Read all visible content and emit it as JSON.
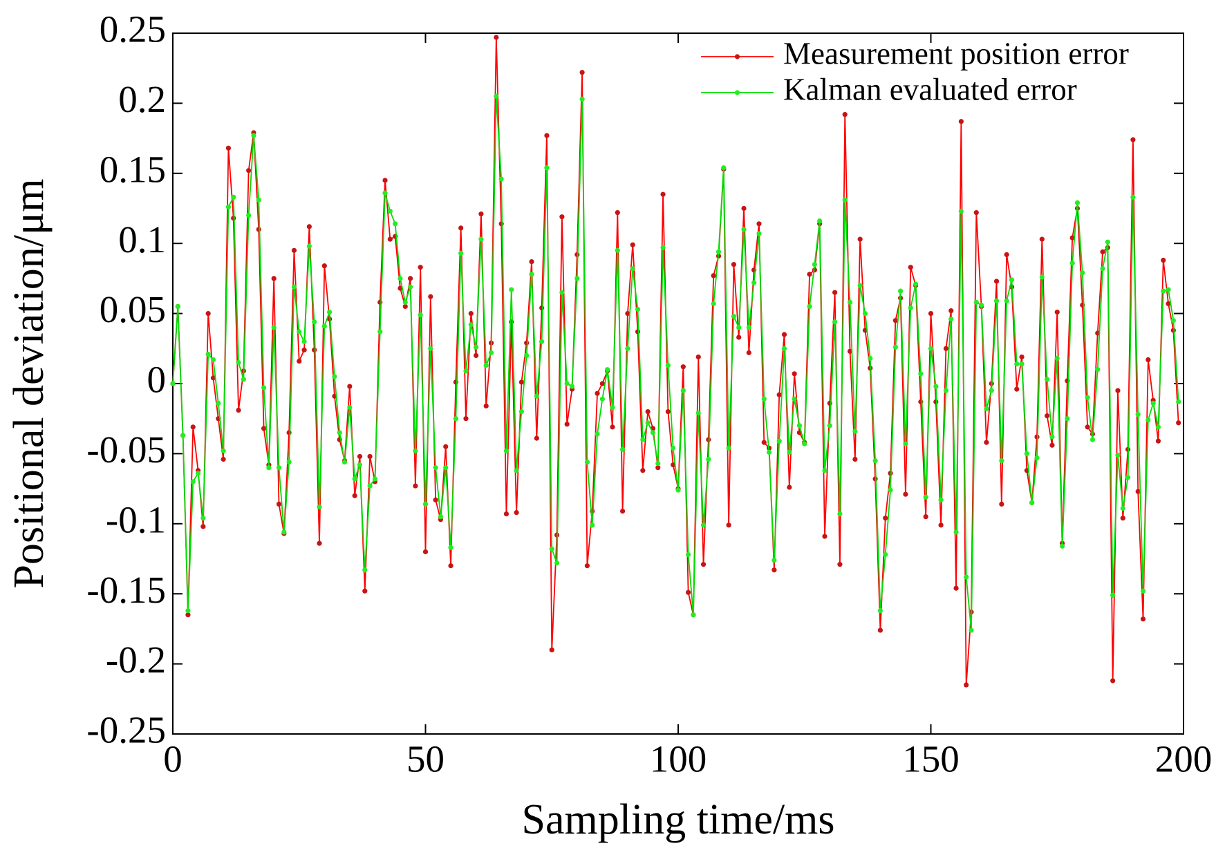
{
  "chart_data": {
    "type": "line",
    "xlabel": "Sampling time/ms",
    "ylabel": "Positional deviation/μm",
    "x": [
      0,
      1,
      2,
      3,
      4,
      5,
      6,
      7,
      8,
      9,
      10,
      11,
      12,
      13,
      14,
      15,
      16,
      17,
      18,
      19,
      20,
      21,
      22,
      23,
      24,
      25,
      26,
      27,
      28,
      29,
      30,
      31,
      32,
      33,
      34,
      35,
      36,
      37,
      38,
      39,
      40,
      41,
      42,
      43,
      44,
      45,
      46,
      47,
      48,
      49,
      50,
      51,
      52,
      53,
      54,
      55,
      56,
      57,
      58,
      59,
      60,
      61,
      62,
      63,
      64,
      65,
      66,
      67,
      68,
      69,
      70,
      71,
      72,
      73,
      74,
      75,
      76,
      77,
      78,
      79,
      80,
      81,
      82,
      83,
      84,
      85,
      86,
      87,
      88,
      89,
      90,
      91,
      92,
      93,
      94,
      95,
      96,
      97,
      98,
      99,
      100,
      101,
      102,
      103,
      104,
      105,
      106,
      107,
      108,
      109,
      110,
      111,
      112,
      113,
      114,
      115,
      116,
      117,
      118,
      119,
      120,
      121,
      122,
      123,
      124,
      125,
      126,
      127,
      128,
      129,
      130,
      131,
      132,
      133,
      134,
      135,
      136,
      137,
      138,
      139,
      140,
      141,
      142,
      143,
      144,
      145,
      146,
      147,
      148,
      149,
      150,
      151,
      152,
      153,
      154,
      155,
      156,
      157,
      158,
      159,
      160,
      161,
      162,
      163,
      164,
      165,
      166,
      167,
      168,
      169,
      170,
      171,
      172,
      173,
      174,
      175,
      176,
      177,
      178,
      179,
      180,
      181,
      182,
      183,
      184,
      185,
      186,
      187,
      188,
      189,
      190,
      191,
      192,
      193,
      194,
      195,
      196,
      197,
      198,
      199
    ],
    "series": [
      {
        "name": "Measurement position error",
        "color": "#ff0000",
        "marker_color": "#c81414",
        "values": [
          0,
          0.055,
          -0.037,
          -0.165,
          -0.031,
          -0.062,
          -0.102,
          0.05,
          0.004,
          -0.025,
          -0.054,
          0.168,
          0.118,
          -0.019,
          0.009,
          0.152,
          0.179,
          0.11,
          -0.032,
          -0.058,
          0.075,
          -0.086,
          -0.107,
          -0.035,
          0.095,
          0.016,
          0.024,
          0.112,
          0.024,
          -0.114,
          0.084,
          0.046,
          -0.009,
          -0.04,
          -0.055,
          -0.002,
          -0.08,
          -0.052,
          -0.148,
          -0.052,
          -0.07,
          0.058,
          0.145,
          0.103,
          0.105,
          0.068,
          0.055,
          0.075,
          -0.073,
          0.083,
          -0.12,
          0.062,
          -0.083,
          -0.097,
          -0.045,
          -0.13,
          0.001,
          0.111,
          -0.025,
          0.05,
          0.02,
          0.121,
          -0.016,
          0.029,
          0.247,
          0.114,
          -0.093,
          0.044,
          -0.092,
          0.001,
          0.029,
          0.087,
          -0.039,
          0.054,
          0.177,
          -0.19,
          -0.108,
          0.119,
          -0.029,
          -0.004,
          0.092,
          0.222,
          -0.13,
          -0.091,
          -0.007,
          0,
          0.009,
          -0.031,
          0.122,
          -0.091,
          0.05,
          0.099,
          0.037,
          -0.062,
          -0.02,
          -0.032,
          -0.06,
          0.135,
          -0.02,
          -0.058,
          -0.075,
          0.012,
          -0.149,
          -0.165,
          0.019,
          -0.129,
          -0.04,
          0.077,
          0.091,
          0.153,
          -0.101,
          0.085,
          0.033,
          0.125,
          0.022,
          0.081,
          0.114,
          -0.042,
          -0.046,
          -0.133,
          -0.008,
          0.035,
          -0.074,
          0.007,
          -0.035,
          -0.042,
          0.078,
          0.081,
          0.114,
          -0.109,
          -0.014,
          0.065,
          -0.129,
          0.192,
          0.023,
          -0.054,
          0.103,
          0.038,
          0.011,
          -0.068,
          -0.176,
          -0.096,
          -0.064,
          0.045,
          0.061,
          -0.079,
          0.083,
          0.07,
          -0.013,
          -0.095,
          0.05,
          -0.013,
          -0.101,
          0.025,
          0.052,
          -0.146,
          0.187,
          -0.215,
          -0.163,
          0.122,
          0.055,
          -0.042,
          0,
          0.073,
          -0.086,
          0.092,
          0.069,
          -0.004,
          0.019,
          -0.062,
          -0.085,
          -0.038,
          0.103,
          -0.023,
          -0.044,
          0.051,
          -0.114,
          0.002,
          0.104,
          0.125,
          0.056,
          -0.031,
          -0.036,
          0.036,
          0.094,
          0.097,
          -0.212,
          -0.005,
          -0.096,
          -0.047,
          0.174,
          -0.077,
          -0.168,
          0.017,
          -0.012,
          -0.041,
          0.088,
          0.057,
          0.038,
          -0.028
        ]
      },
      {
        "name": "Kalman evaluated error",
        "color": "#00dd00",
        "marker_color": "#22ee22",
        "values": [
          0,
          0.055,
          -0.037,
          -0.162,
          -0.07,
          -0.064,
          -0.096,
          0.021,
          0.017,
          -0.014,
          -0.048,
          0.126,
          0.133,
          0.015,
          0.003,
          0.12,
          0.177,
          0.131,
          -0.003,
          -0.06,
          0.04,
          -0.06,
          -0.106,
          -0.056,
          0.069,
          0.037,
          0.03,
          0.098,
          0.044,
          -0.088,
          0.041,
          0.051,
          0.005,
          -0.035,
          -0.056,
          -0.017,
          -0.068,
          -0.058,
          -0.133,
          -0.073,
          -0.068,
          0.037,
          0.136,
          0.123,
          0.114,
          0.075,
          0.058,
          0.069,
          -0.048,
          0.049,
          -0.086,
          0.025,
          -0.06,
          -0.095,
          -0.06,
          -0.117,
          -0.025,
          0.093,
          0.009,
          0.042,
          0.026,
          0.103,
          0.013,
          0.022,
          0.205,
          0.146,
          -0.048,
          0.067,
          -0.062,
          -0.02,
          0.02,
          0.078,
          -0.009,
          0.03,
          0.154,
          -0.118,
          -0.128,
          0.065,
          0,
          -0.002,
          0.075,
          0.203,
          -0.056,
          -0.101,
          -0.036,
          -0.011,
          0.01,
          -0.017,
          0.095,
          -0.047,
          0.025,
          0.082,
          0.053,
          -0.04,
          -0.028,
          -0.035,
          -0.057,
          0.097,
          0.013,
          -0.046,
          -0.076,
          -0.005,
          -0.122,
          -0.165,
          -0.021,
          -0.101,
          -0.054,
          0.057,
          0.094,
          0.154,
          -0.046,
          0.048,
          0.04,
          0.11,
          0.04,
          0.072,
          0.107,
          -0.011,
          -0.049,
          -0.126,
          -0.041,
          0.025,
          -0.049,
          -0.011,
          -0.03,
          -0.043,
          0.055,
          0.085,
          0.116,
          -0.062,
          -0.03,
          0.044,
          -0.093,
          0.131,
          0.058,
          -0.034,
          0.07,
          0.05,
          0.018,
          -0.055,
          -0.162,
          -0.122,
          -0.076,
          0.026,
          0.066,
          -0.043,
          0.054,
          0.071,
          0.007,
          -0.081,
          0.025,
          -0.002,
          -0.083,
          -0.005,
          0.046,
          -0.106,
          0.123,
          -0.138,
          -0.176,
          0.058,
          0.056,
          -0.018,
          -0.005,
          0.059,
          -0.055,
          0.059,
          0.074,
          0.014,
          0.014,
          -0.05,
          -0.085,
          -0.053,
          0.076,
          0.003,
          -0.038,
          0.018,
          -0.116,
          -0.025,
          0.086,
          0.129,
          0.079,
          -0.01,
          -0.04,
          0.01,
          0.082,
          0.101,
          -0.151,
          -0.051,
          -0.089,
          -0.067,
          0.133,
          -0.022,
          -0.148,
          -0.026,
          -0.014,
          -0.031,
          0.066,
          0.067,
          0.045,
          -0.013
        ]
      }
    ],
    "xlim": [
      0,
      200
    ],
    "xticks": [
      0,
      50,
      100,
      150,
      200
    ],
    "ylim": [
      -0.25,
      0.25
    ],
    "yticks": [
      -0.25,
      -0.2,
      -0.15,
      -0.1,
      -0.05,
      0,
      0.05,
      0.1,
      0.15,
      0.2,
      0.25
    ],
    "grid": false,
    "legend": "upper right"
  }
}
